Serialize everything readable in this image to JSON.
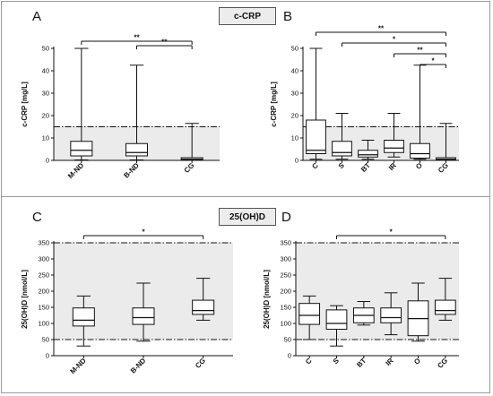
{
  "sections": {
    "top_title": "c-CRP",
    "bottom_title": "25(OH)D"
  },
  "colors": {
    "band": "#ebebeb",
    "box_fill": "#ffffff",
    "stroke": "#111111"
  },
  "chart_data": [
    {
      "panel": "A",
      "type": "box",
      "ylabel": "c-CRP [mg/L]",
      "ylim": [
        0,
        50
      ],
      "yticks": [
        0,
        10,
        20,
        30,
        40,
        50
      ],
      "reference_band": [
        0,
        15
      ],
      "categories": [
        "M-ND",
        "B-ND",
        "CG"
      ],
      "boxes": [
        {
          "min": 0.2,
          "q1": 2,
          "median": 4.5,
          "q3": 8.5,
          "max": 50
        },
        {
          "min": 0.2,
          "q1": 2,
          "median": 3.5,
          "q3": 7.5,
          "max": 42.5
        },
        {
          "min": 0,
          "q1": 0.2,
          "median": 0.5,
          "q3": 1.2,
          "max": 16.5
        }
      ],
      "significance": [
        {
          "from": 0,
          "to": 2,
          "label": "**"
        },
        {
          "from": 1,
          "to": 2,
          "label": "**"
        }
      ]
    },
    {
      "panel": "B",
      "type": "box",
      "ylabel": "c-CRP [mg/L]",
      "ylim": [
        0,
        50
      ],
      "yticks": [
        0,
        10,
        20,
        30,
        40,
        50
      ],
      "reference_band": [
        0,
        15
      ],
      "categories": [
        "C",
        "S",
        "BT",
        "IR",
        "O",
        "CG"
      ],
      "boxes": [
        {
          "min": 0.5,
          "q1": 3,
          "median": 4.5,
          "q3": 18,
          "max": 50
        },
        {
          "min": 0.5,
          "q1": 2,
          "median": 3.5,
          "q3": 8.5,
          "max": 21
        },
        {
          "min": 0.5,
          "q1": 1.5,
          "median": 2.5,
          "q3": 4.5,
          "max": 9
        },
        {
          "min": 1.5,
          "q1": 3.5,
          "median": 5.5,
          "q3": 9,
          "max": 21
        },
        {
          "min": 0.5,
          "q1": 1,
          "median": 3,
          "q3": 7.5,
          "max": 42.5
        },
        {
          "min": 0,
          "q1": 0.2,
          "median": 0.5,
          "q3": 1.2,
          "max": 16.5
        }
      ],
      "significance": [
        {
          "from": 0,
          "to": 5,
          "label": "**"
        },
        {
          "from": 1,
          "to": 5,
          "label": "*"
        },
        {
          "from": 3,
          "to": 5,
          "label": "**"
        },
        {
          "from": 4,
          "to": 5,
          "label": "*"
        }
      ]
    },
    {
      "panel": "C",
      "type": "box",
      "ylabel": "25(OH)D [nmol/L]",
      "ylim": [
        0,
        350
      ],
      "yticks": [
        0,
        50,
        100,
        150,
        200,
        250,
        300,
        350
      ],
      "reference_band": [
        50,
        350
      ],
      "categories": [
        "M-ND",
        "B-ND",
        "CG"
      ],
      "boxes": [
        {
          "min": 30,
          "q1": 92,
          "median": 110,
          "q3": 148,
          "max": 185
        },
        {
          "min": 45,
          "q1": 97,
          "median": 118,
          "q3": 148,
          "max": 225
        },
        {
          "min": 110,
          "q1": 128,
          "median": 140,
          "q3": 172,
          "max": 240
        }
      ],
      "significance": [
        {
          "from": 0,
          "to": 2,
          "label": "*"
        }
      ]
    },
    {
      "panel": "D",
      "type": "box",
      "ylabel": "25(OH)D [nmol/L]",
      "ylim": [
        0,
        350
      ],
      "yticks": [
        0,
        50,
        100,
        150,
        200,
        250,
        300,
        350
      ],
      "reference_band": [
        50,
        350
      ],
      "categories": [
        "C",
        "S",
        "BT",
        "IR",
        "O",
        "CG"
      ],
      "boxes": [
        {
          "min": 50,
          "q1": 97,
          "median": 125,
          "q3": 162,
          "max": 185
        },
        {
          "min": 30,
          "q1": 82,
          "median": 100,
          "q3": 142,
          "max": 155
        },
        {
          "min": 95,
          "q1": 102,
          "median": 125,
          "q3": 148,
          "max": 168
        },
        {
          "min": 65,
          "q1": 102,
          "median": 118,
          "q3": 148,
          "max": 195
        },
        {
          "min": 45,
          "q1": 62,
          "median": 115,
          "q3": 170,
          "max": 225
        },
        {
          "min": 110,
          "q1": 128,
          "median": 140,
          "q3": 172,
          "max": 240
        }
      ],
      "significance": [
        {
          "from": 1,
          "to": 5,
          "label": "*"
        }
      ]
    }
  ]
}
